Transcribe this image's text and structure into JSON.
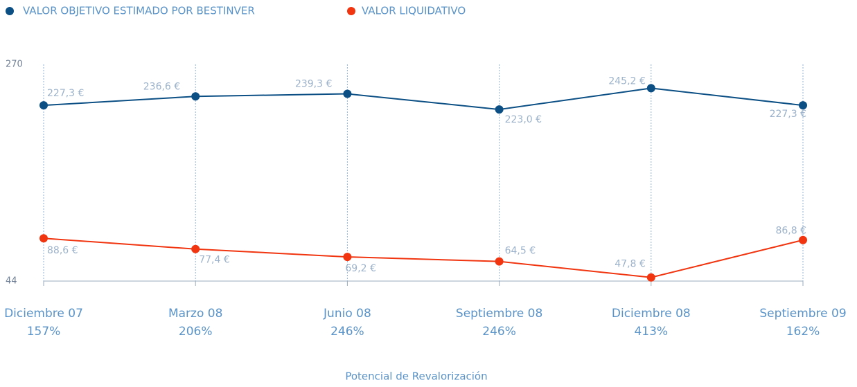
{
  "chart_data": {
    "type": "line",
    "categories": [
      "Diciembre 07",
      "Marzo 08",
      "Junio 08",
      "Septiembre 08",
      "Diciembre 08",
      "Septiembre 09"
    ],
    "series": [
      {
        "name": "VALOR OBJETIVO ESTIMADO POR BESTINVER",
        "color": "#0b4f85",
        "values": [
          227.3,
          236.6,
          239.3,
          223.0,
          245.2,
          227.3
        ],
        "value_labels": [
          "227,3 €",
          "236,6 €",
          "239,3 €",
          "223,0 €",
          "245,2 €",
          "227,3 €"
        ]
      },
      {
        "name": "VALOR LIQUIDATIVO",
        "color": "#f03510",
        "values": [
          88.6,
          77.4,
          69.2,
          64.5,
          47.8,
          86.8
        ],
        "value_labels": [
          "88,6 €",
          "77,4 €",
          "69,2 €",
          "64,5 €",
          "47,8 €",
          "86,8 €"
        ]
      }
    ],
    "potential": {
      "name": "Potencial de Revalorización",
      "values": [
        157,
        206,
        246,
        246,
        413,
        162
      ],
      "value_labels": [
        "157%",
        "206%",
        "246%",
        "246%",
        "413%",
        "162%"
      ]
    },
    "ylim": [
      44,
      270
    ],
    "yticks": [
      44,
      270
    ],
    "legend": "top-left"
  }
}
